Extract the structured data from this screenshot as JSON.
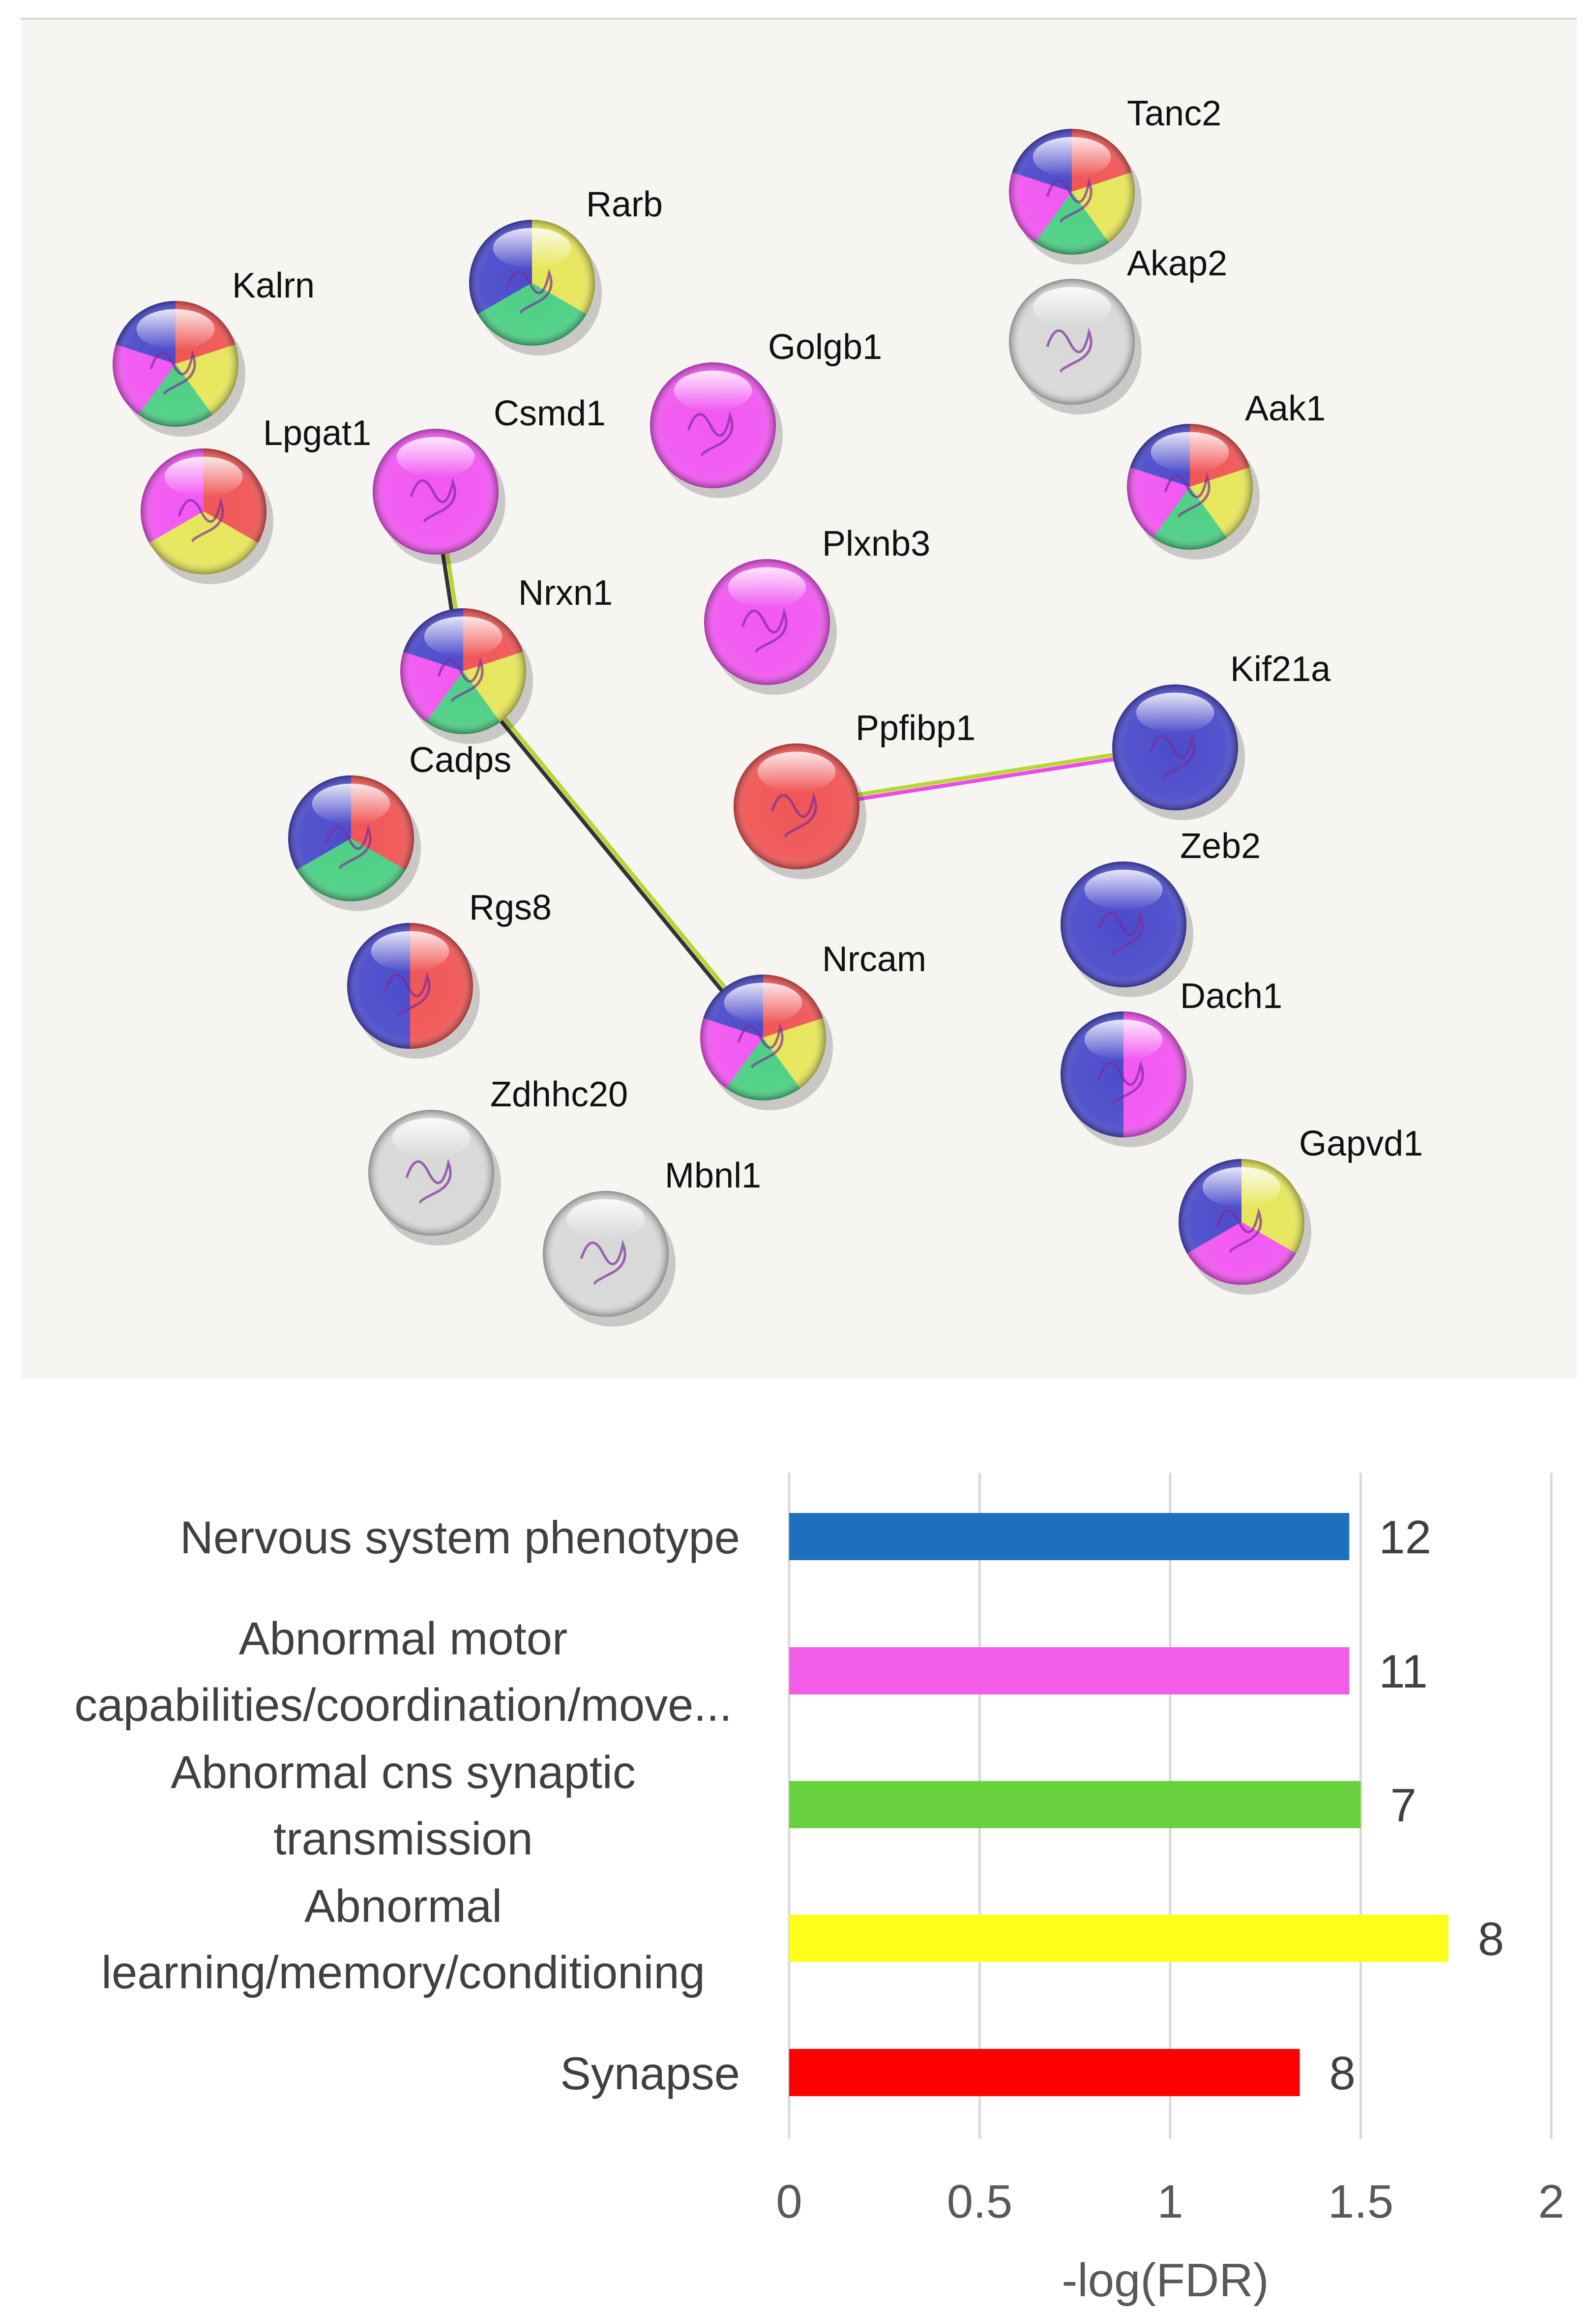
{
  "colors": {
    "red": "#f05656",
    "blue": "#4c4ccc",
    "pink": "#f257f2",
    "green": "#4ccf84",
    "yellow": "#e6e65a",
    "gray": "#d8d8d8",
    "edge_black": "#333333",
    "edge_yellowgreen": "#b8d630",
    "edge_pink": "#e94ce9"
  },
  "network": {
    "nodes": [
      {
        "id": "Tanc2",
        "label": "Tanc2",
        "colors": [
          "red",
          "yellow",
          "green",
          "pink",
          "blue"
        ]
      },
      {
        "id": "Akap2",
        "label": "Akap2",
        "colors": [
          "gray"
        ]
      },
      {
        "id": "Rarb",
        "label": "Rarb",
        "colors": [
          "yellow",
          "green",
          "blue"
        ]
      },
      {
        "id": "Kalrn",
        "label": "Kalrn",
        "colors": [
          "red",
          "yellow",
          "green",
          "pink",
          "blue"
        ]
      },
      {
        "id": "Golgb1",
        "label": "Golgb1",
        "colors": [
          "pink"
        ]
      },
      {
        "id": "Aak1",
        "label": "Aak1",
        "colors": [
          "red",
          "yellow",
          "green",
          "pink",
          "blue"
        ]
      },
      {
        "id": "Lpgat1",
        "label": "Lpgat1",
        "colors": [
          "red",
          "yellow",
          "pink"
        ]
      },
      {
        "id": "Csmd1",
        "label": "Csmd1",
        "colors": [
          "pink"
        ]
      },
      {
        "id": "Plxnb3",
        "label": "Plxnb3",
        "colors": [
          "pink"
        ]
      },
      {
        "id": "Nrxn1",
        "label": "Nrxn1",
        "colors": [
          "red",
          "yellow",
          "green",
          "pink",
          "blue"
        ]
      },
      {
        "id": "Kif21a",
        "label": "Kif21a",
        "colors": [
          "blue"
        ]
      },
      {
        "id": "Ppfibp1",
        "label": "Ppfibp1",
        "colors": [
          "red"
        ]
      },
      {
        "id": "Cadps",
        "label": "Cadps",
        "colors": [
          "red",
          "green",
          "blue"
        ]
      },
      {
        "id": "Zeb2",
        "label": "Zeb2",
        "colors": [
          "blue"
        ]
      },
      {
        "id": "Rgs8",
        "label": "Rgs8",
        "colors": [
          "red",
          "blue"
        ]
      },
      {
        "id": "Nrcam",
        "label": "Nrcam",
        "colors": [
          "red",
          "yellow",
          "green",
          "pink",
          "blue"
        ]
      },
      {
        "id": "Dach1",
        "label": "Dach1",
        "colors": [
          "pink",
          "blue"
        ]
      },
      {
        "id": "Zdhhc20",
        "label": "Zdhhc20",
        "colors": [
          "gray"
        ]
      },
      {
        "id": "Gapvd1",
        "label": "Gapvd1",
        "colors": [
          "yellow",
          "pink",
          "blue"
        ]
      },
      {
        "id": "Mbnl1",
        "label": "Mbnl1",
        "colors": [
          "gray"
        ]
      }
    ],
    "edges": [
      {
        "from": "Csmd1",
        "to": "Nrxn1",
        "colors": [
          "edge_yellowgreen",
          "edge_black"
        ]
      },
      {
        "from": "Nrxn1",
        "to": "Nrcam",
        "colors": [
          "edge_yellowgreen",
          "edge_black"
        ]
      },
      {
        "from": "Ppfibp1",
        "to": "Kif21a",
        "colors": [
          "edge_yellowgreen",
          "edge_pink"
        ]
      }
    ]
  },
  "chart_data": {
    "type": "bar",
    "orientation": "horizontal",
    "categories": [
      [
        "Nervous system phenotype"
      ],
      [
        "Abnormal motor",
        "capabilities/coordination/move..."
      ],
      [
        "Abnormal cns synaptic",
        "transmission"
      ],
      [
        "Abnormal",
        "learning/memory/conditioning"
      ],
      [
        "Synapse"
      ]
    ],
    "values": [
      1.47,
      1.47,
      1.5,
      1.73,
      1.34
    ],
    "data_labels": [
      "12",
      "11",
      "7",
      "8",
      "8"
    ],
    "bar_colors": [
      "#1f6fbf",
      "#f35ce6",
      "#6ad13f",
      "#ffff1a",
      "#ff0000"
    ],
    "xlabel": "-log(FDR)",
    "ylabel": "",
    "xlim": [
      0,
      2
    ],
    "xticks": [
      "0",
      "0.5",
      "1",
      "1.5",
      "2"
    ],
    "grid": true
  }
}
